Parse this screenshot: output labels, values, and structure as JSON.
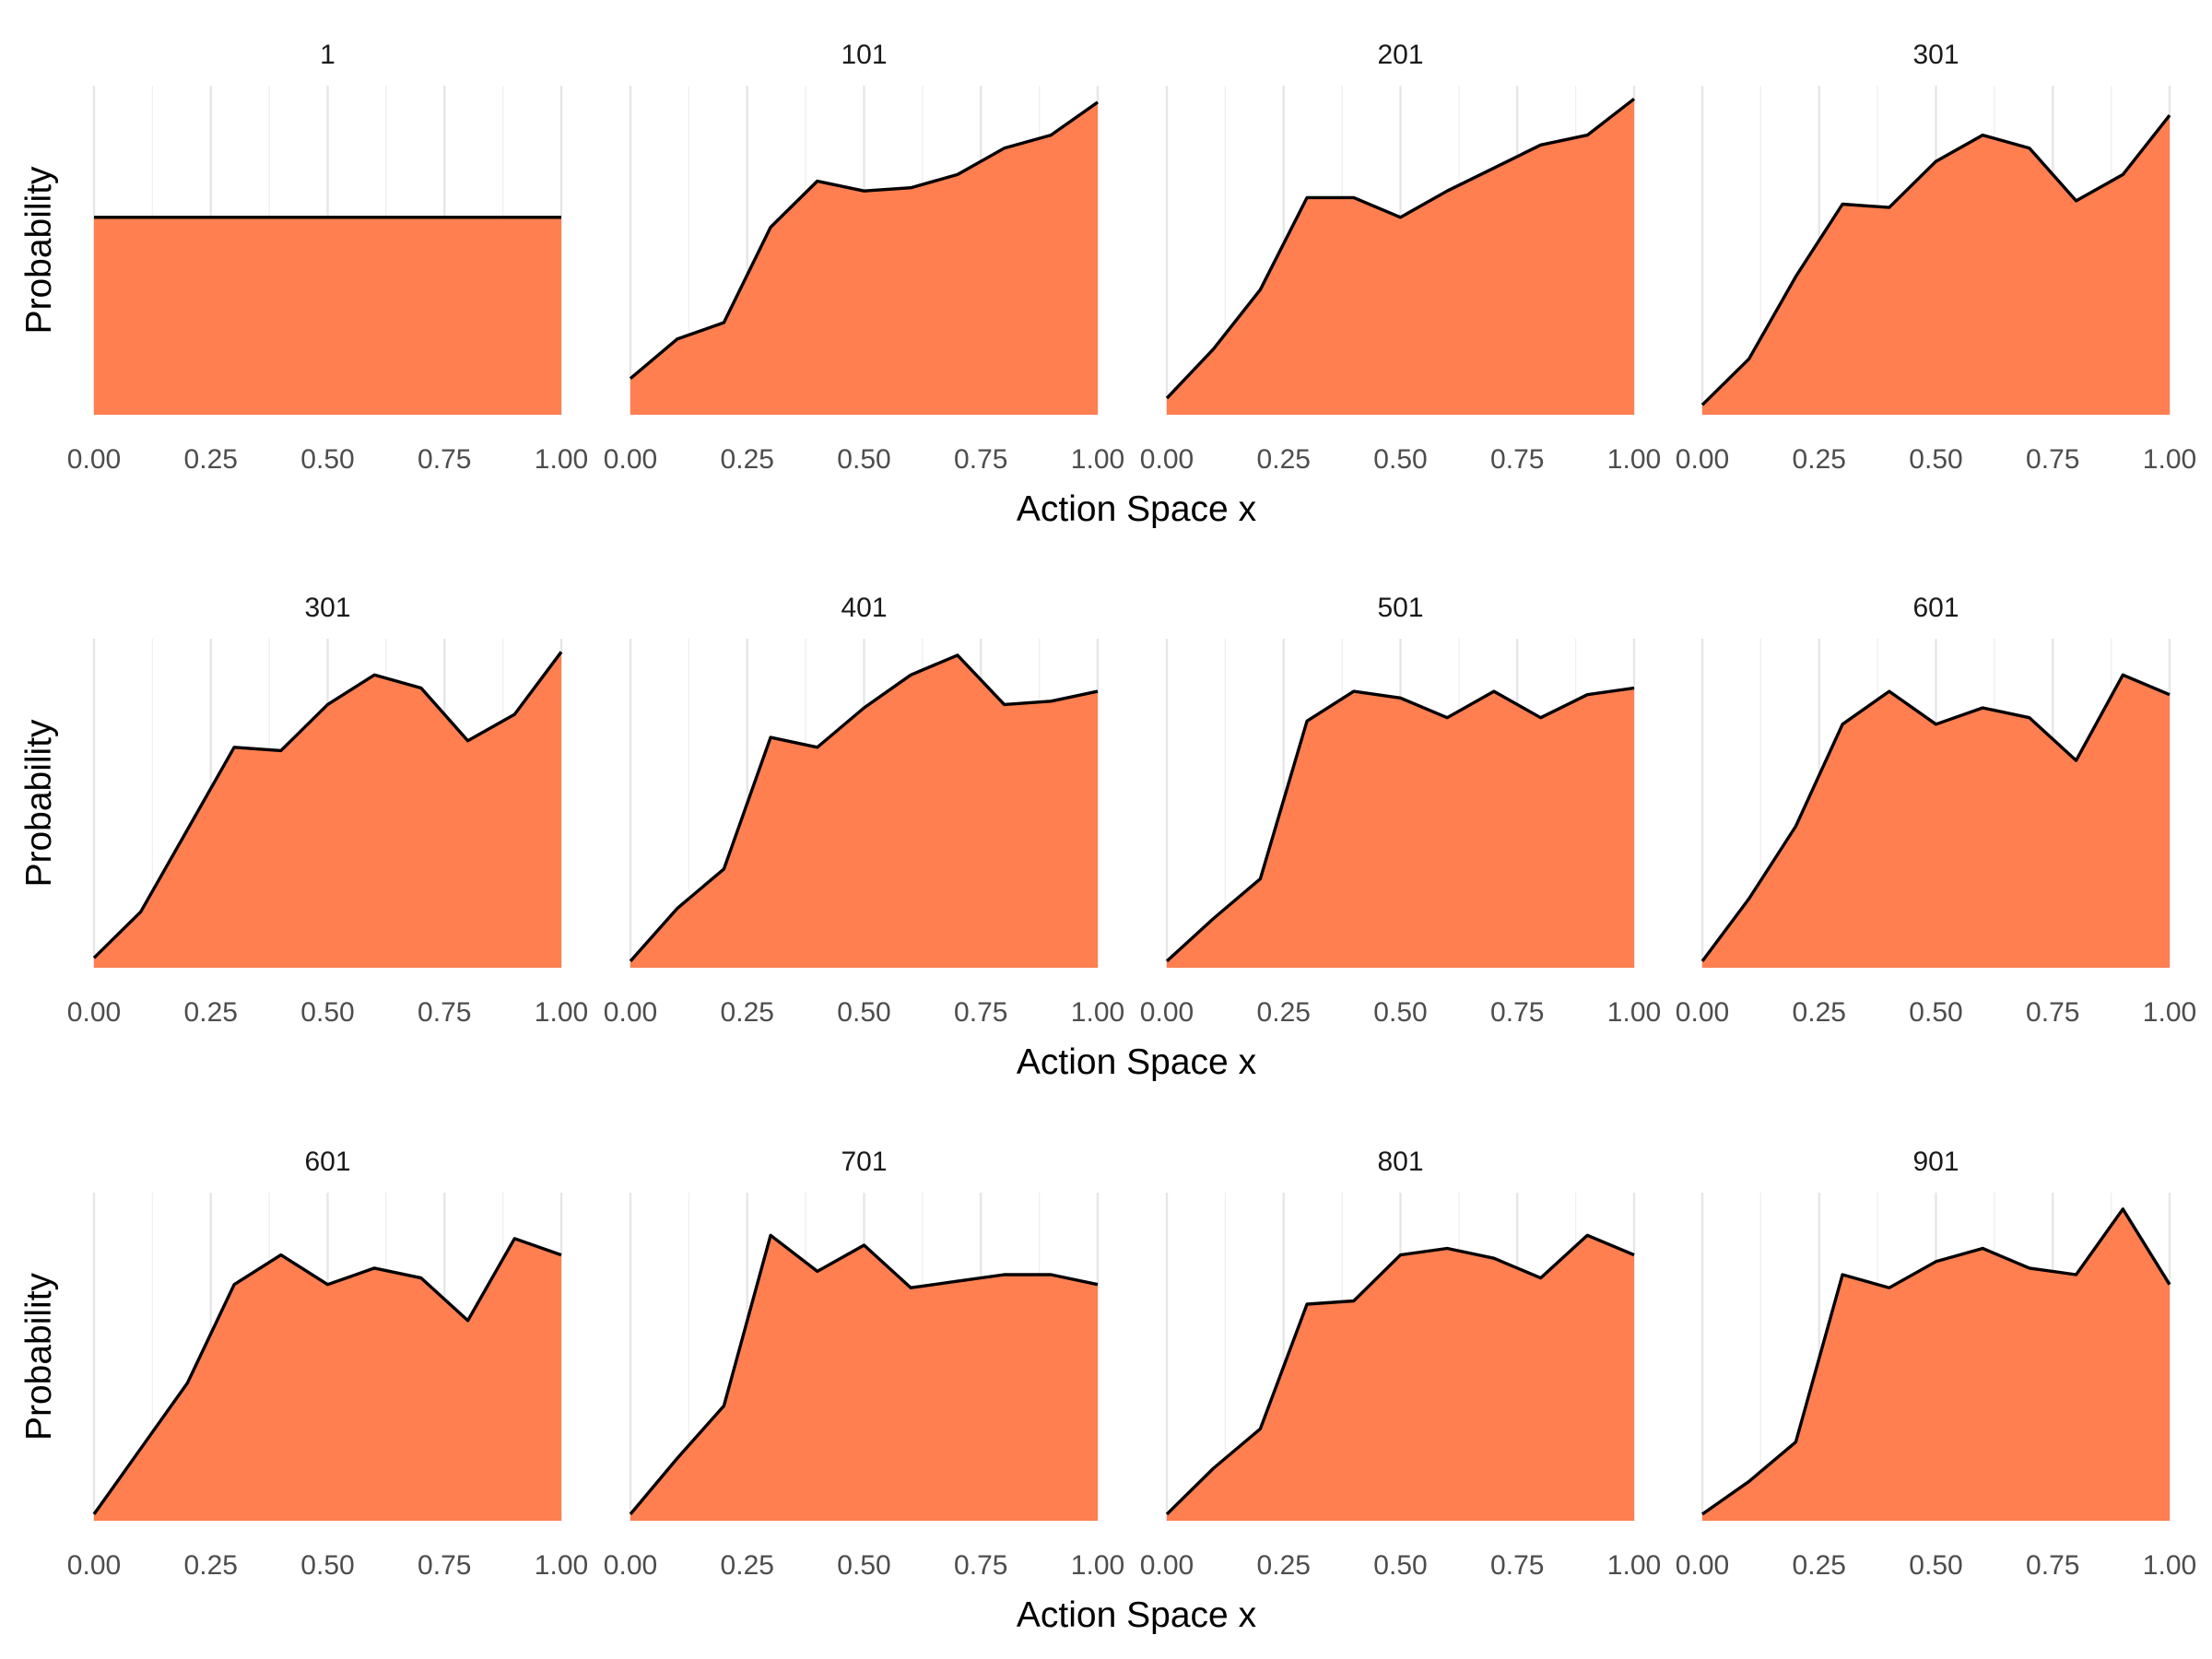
{
  "chart_data": {
    "type": "area",
    "x_axis_label": "Action Space x",
    "y_axis_label": "Probability",
    "x_range": [
      0,
      1
    ],
    "x_ticks": [
      "0.00",
      "0.25",
      "0.50",
      "0.75",
      "1.00"
    ],
    "y_range": [
      0,
      1
    ],
    "y_ticks_shown": false,
    "grid": "vertical-only",
    "fill_color": "#FF7F50",
    "line_color": "#000000",
    "rows": [
      {
        "panels": [
          {
            "title": "1",
            "x": [
              0,
              1
            ],
            "y": [
              0.6,
              0.6
            ]
          },
          {
            "title": "101",
            "x": [
              0,
              0.1,
              0.2,
              0.3,
              0.4,
              0.5,
              0.6,
              0.7,
              0.8,
              0.9,
              1.0
            ],
            "y": [
              0.11,
              0.23,
              0.28,
              0.57,
              0.71,
              0.68,
              0.69,
              0.73,
              0.81,
              0.85,
              0.95
            ]
          },
          {
            "title": "201",
            "x": [
              0,
              0.1,
              0.2,
              0.3,
              0.4,
              0.5,
              0.6,
              0.7,
              0.8,
              0.9,
              1.0
            ],
            "y": [
              0.05,
              0.2,
              0.38,
              0.66,
              0.66,
              0.6,
              0.68,
              0.75,
              0.82,
              0.85,
              0.96
            ]
          },
          {
            "title": "301",
            "x": [
              0,
              0.1,
              0.2,
              0.3,
              0.4,
              0.5,
              0.6,
              0.7,
              0.8,
              0.9,
              1.0
            ],
            "y": [
              0.03,
              0.17,
              0.42,
              0.64,
              0.63,
              0.77,
              0.85,
              0.81,
              0.65,
              0.73,
              0.91
            ]
          }
        ]
      },
      {
        "panels": [
          {
            "title": "301",
            "x": [
              0,
              0.1,
              0.2,
              0.3,
              0.4,
              0.5,
              0.6,
              0.7,
              0.8,
              0.9,
              1.0
            ],
            "y": [
              0.03,
              0.17,
              0.42,
              0.67,
              0.66,
              0.8,
              0.89,
              0.85,
              0.69,
              0.77,
              0.96
            ]
          },
          {
            "title": "401",
            "x": [
              0,
              0.1,
              0.2,
              0.3,
              0.4,
              0.5,
              0.6,
              0.7,
              0.8,
              0.9,
              1.0
            ],
            "y": [
              0.02,
              0.18,
              0.3,
              0.7,
              0.67,
              0.79,
              0.89,
              0.95,
              0.8,
              0.81,
              0.84
            ]
          },
          {
            "title": "501",
            "x": [
              0,
              0.1,
              0.2,
              0.3,
              0.4,
              0.5,
              0.6,
              0.7,
              0.8,
              0.9,
              1.0
            ],
            "y": [
              0.02,
              0.15,
              0.27,
              0.75,
              0.84,
              0.82,
              0.76,
              0.84,
              0.76,
              0.83,
              0.85
            ]
          },
          {
            "title": "601",
            "x": [
              0,
              0.1,
              0.2,
              0.3,
              0.4,
              0.5,
              0.6,
              0.7,
              0.8,
              0.9,
              1.0
            ],
            "y": [
              0.02,
              0.21,
              0.43,
              0.74,
              0.84,
              0.74,
              0.79,
              0.76,
              0.63,
              0.89,
              0.83
            ]
          }
        ]
      },
      {
        "panels": [
          {
            "title": "601",
            "x": [
              0,
              0.1,
              0.2,
              0.3,
              0.4,
              0.5,
              0.6,
              0.7,
              0.8,
              0.9,
              1.0
            ],
            "y": [
              0.02,
              0.22,
              0.42,
              0.72,
              0.81,
              0.72,
              0.77,
              0.74,
              0.61,
              0.86,
              0.81
            ]
          },
          {
            "title": "701",
            "x": [
              0,
              0.1,
              0.2,
              0.3,
              0.4,
              0.5,
              0.6,
              0.7,
              0.8,
              0.9,
              1.0
            ],
            "y": [
              0.02,
              0.19,
              0.35,
              0.87,
              0.76,
              0.84,
              0.71,
              0.73,
              0.75,
              0.75,
              0.72
            ]
          },
          {
            "title": "801",
            "x": [
              0,
              0.1,
              0.2,
              0.3,
              0.4,
              0.5,
              0.6,
              0.7,
              0.8,
              0.9,
              1.0
            ],
            "y": [
              0.02,
              0.16,
              0.28,
              0.66,
              0.67,
              0.81,
              0.83,
              0.8,
              0.74,
              0.87,
              0.81
            ]
          },
          {
            "title": "901",
            "x": [
              0,
              0.1,
              0.2,
              0.3,
              0.4,
              0.5,
              0.6,
              0.7,
              0.8,
              0.9,
              1.0
            ],
            "y": [
              0.02,
              0.12,
              0.24,
              0.75,
              0.71,
              0.79,
              0.83,
              0.77,
              0.75,
              0.95,
              0.72
            ]
          }
        ]
      }
    ]
  }
}
